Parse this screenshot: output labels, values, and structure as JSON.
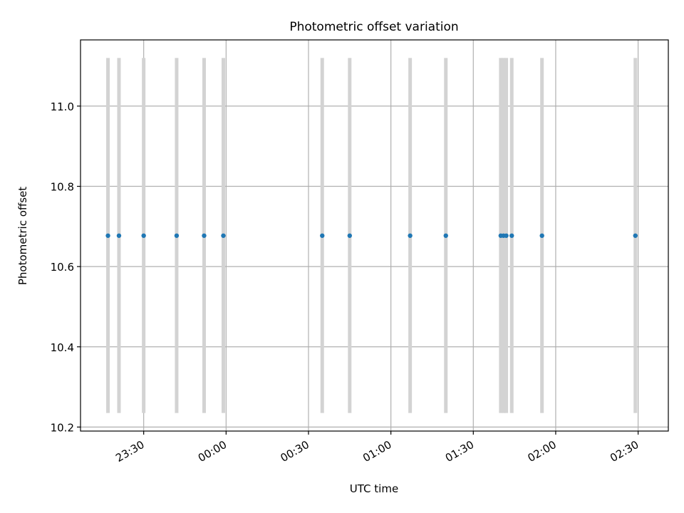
{
  "chart_data": {
    "type": "scatter",
    "title": "Photometric offset variation",
    "xlabel": "UTC time",
    "ylabel": "Photometric offset",
    "x_axis": {
      "type": "time",
      "ticks": [
        "23:30",
        "00:00",
        "00:30",
        "01:00",
        "01:30",
        "02:00",
        "02:30"
      ],
      "range": [
        "23:07",
        "02:41"
      ]
    },
    "y_axis": {
      "range": [
        10.19,
        11.165
      ],
      "ticks": [
        "10.2",
        "10.4",
        "10.6",
        "10.8",
        "11.0"
      ]
    },
    "grid": true,
    "legend": "none",
    "series": [
      {
        "color": "#1f77b4",
        "marker": "dot",
        "x": [
          "23:17",
          "23:21",
          "23:30",
          "23:42",
          "23:52",
          "23:59",
          "00:35",
          "00:45",
          "01:07",
          "01:20",
          "01:40",
          "01:41",
          "01:42",
          "01:44",
          "01:55",
          "02:29"
        ],
        "y": [
          10.677,
          10.677,
          10.677,
          10.677,
          10.677,
          10.677,
          10.677,
          10.677,
          10.677,
          10.677,
          10.677,
          10.677,
          10.677,
          10.677,
          10.677,
          10.677
        ]
      }
    ],
    "vertical_bands": {
      "color": "#d3d3d3",
      "y_range": [
        10.235,
        11.12
      ],
      "x": [
        "23:17",
        "23:21",
        "23:30",
        "23:42",
        "23:52",
        "23:59",
        "00:35",
        "00:45",
        "01:07",
        "01:20",
        "01:40",
        "01:41",
        "01:42",
        "01:44",
        "01:55",
        "02:29"
      ]
    }
  }
}
